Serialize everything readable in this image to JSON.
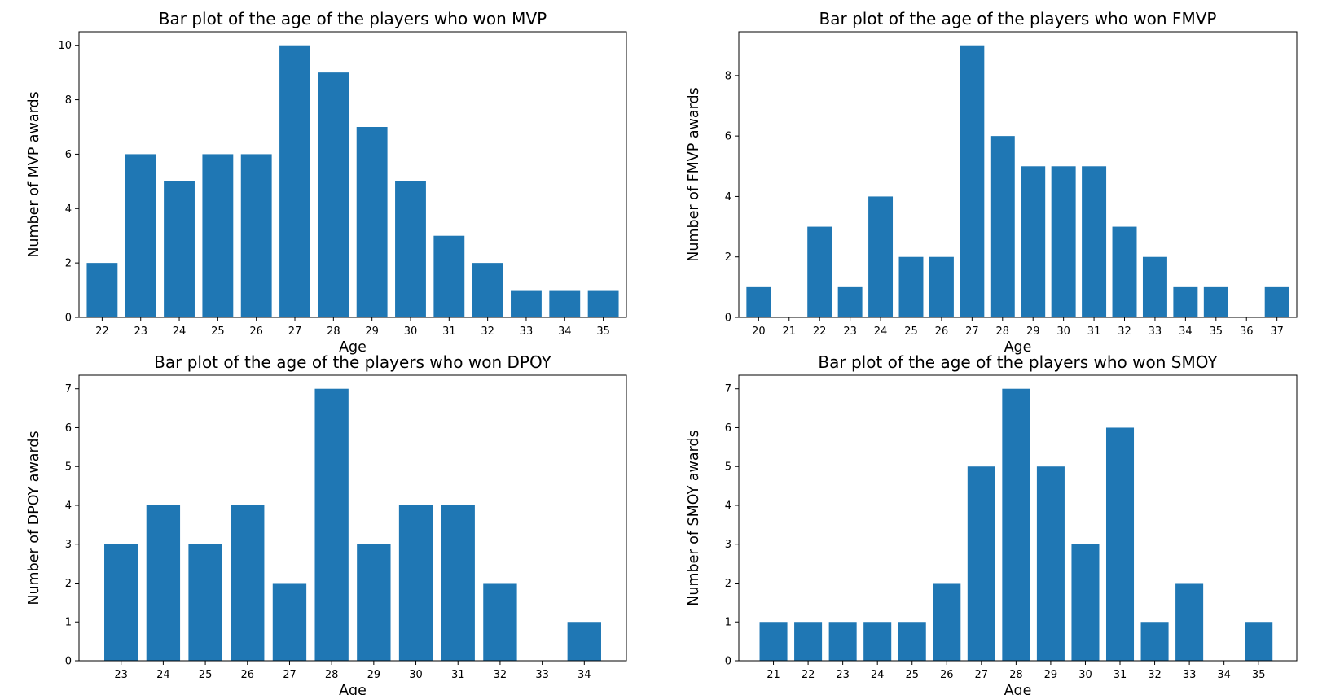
{
  "chart_data": [
    {
      "type": "bar",
      "title": "Bar plot of the age of the players who won MVP",
      "xlabel": "Age",
      "ylabel": "Number of MVP awards",
      "categories": [
        22,
        23,
        24,
        25,
        26,
        27,
        28,
        29,
        30,
        31,
        32,
        33,
        34,
        35
      ],
      "values": [
        2,
        6,
        5,
        6,
        6,
        10,
        9,
        7,
        5,
        3,
        2,
        1,
        1,
        1
      ],
      "xticks": [
        22,
        23,
        24,
        25,
        26,
        27,
        28,
        29,
        30,
        31,
        32,
        33,
        34,
        35
      ],
      "yticks": [
        0,
        2,
        4,
        6,
        8,
        10
      ],
      "xlim": [
        21.4,
        35.6
      ],
      "ylim": [
        0,
        10.5
      ],
      "grid": false,
      "color": "#1f77b4"
    },
    {
      "type": "bar",
      "title": "Bar plot of the age of the players who won FMVP",
      "xlabel": "Age",
      "ylabel": "Number of FMVP awards",
      "categories": [
        20,
        21,
        22,
        23,
        24,
        25,
        26,
        27,
        28,
        29,
        30,
        31,
        32,
        33,
        34,
        35,
        36,
        37
      ],
      "values": [
        1,
        0,
        3,
        1,
        4,
        2,
        2,
        9,
        6,
        5,
        5,
        5,
        3,
        2,
        1,
        1,
        0,
        1
      ],
      "xticks": [
        20,
        21,
        22,
        23,
        24,
        25,
        26,
        27,
        28,
        29,
        30,
        31,
        32,
        33,
        34,
        35,
        36,
        37
      ],
      "yticks": [
        0,
        2,
        4,
        6,
        8
      ],
      "xlim": [
        19.35,
        37.65
      ],
      "ylim": [
        0,
        9.45
      ],
      "grid": false,
      "color": "#1f77b4"
    },
    {
      "type": "bar",
      "title": "Bar plot of the age of the players who won DPOY",
      "xlabel": "Age",
      "ylabel": "Number of DPOY awards",
      "categories": [
        23,
        24,
        25,
        26,
        27,
        28,
        29,
        30,
        31,
        32,
        33,
        34
      ],
      "values": [
        3,
        4,
        3,
        4,
        2,
        7,
        3,
        4,
        4,
        2,
        0,
        1
      ],
      "xticks": [
        23,
        24,
        25,
        26,
        27,
        28,
        29,
        30,
        31,
        32,
        33,
        34
      ],
      "yticks": [
        0,
        1,
        2,
        3,
        4,
        5,
        6,
        7
      ],
      "xlim": [
        22.0,
        35.0
      ],
      "ylim": [
        0,
        7.35
      ],
      "grid": false,
      "color": "#1f77b4"
    },
    {
      "type": "bar",
      "title": "Bar plot of the age of the players who won SMOY",
      "xlabel": "Age",
      "ylabel": "Number of SMOY awards",
      "categories": [
        21,
        22,
        23,
        24,
        25,
        26,
        27,
        28,
        29,
        30,
        31,
        32,
        33,
        34,
        35
      ],
      "values": [
        1,
        1,
        1,
        1,
        1,
        2,
        5,
        7,
        5,
        3,
        6,
        1,
        2,
        0,
        1
      ],
      "xticks": [
        21,
        22,
        23,
        24,
        25,
        26,
        27,
        28,
        29,
        30,
        31,
        32,
        33,
        34,
        35
      ],
      "yticks": [
        0,
        1,
        2,
        3,
        4,
        5,
        6,
        7
      ],
      "xlim": [
        20.0,
        36.1
      ],
      "ylim": [
        0,
        7.35
      ],
      "grid": false,
      "color": "#1f77b4"
    }
  ]
}
